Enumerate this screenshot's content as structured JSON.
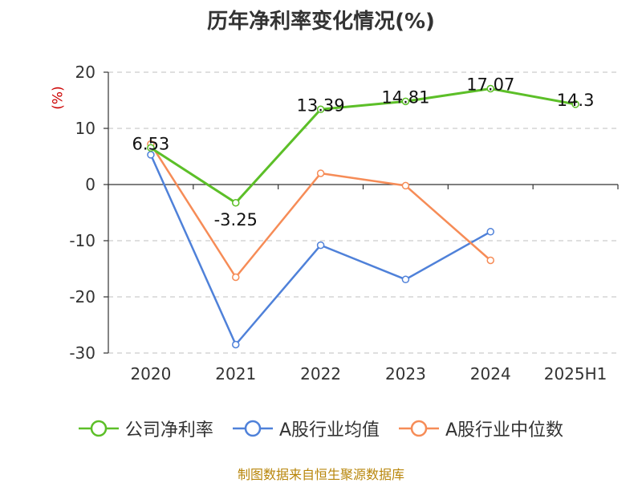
{
  "title": "历年净利率变化情况(%)",
  "unit": "(%)",
  "source": "制图数据来自恒生聚源数据库",
  "chart_data": {
    "type": "line",
    "categories": [
      "2020",
      "2021",
      "2022",
      "2023",
      "2024",
      "2025H1"
    ],
    "ylim": [
      -30,
      20
    ],
    "yticks": [
      20,
      10,
      0,
      -10,
      -20,
      -30
    ],
    "grid": true,
    "legend_position": "bottom",
    "series": [
      {
        "name": "公司净利率",
        "color": "#5cbf28",
        "values": [
          6.53,
          -3.25,
          13.39,
          14.81,
          17.07,
          14.3
        ],
        "labels": [
          "6.53",
          "-3.25",
          "13.39",
          "14.81",
          "17.07",
          "14.3"
        ]
      },
      {
        "name": "A股行业均值",
        "color": "#4f81d9",
        "values": [
          5.3,
          -28.5,
          -10.8,
          -16.9,
          -8.4,
          null
        ]
      },
      {
        "name": "A股行业中位数",
        "color": "#f68c57",
        "values": [
          7.2,
          -16.5,
          2.0,
          -0.2,
          -13.5,
          null
        ]
      }
    ]
  }
}
